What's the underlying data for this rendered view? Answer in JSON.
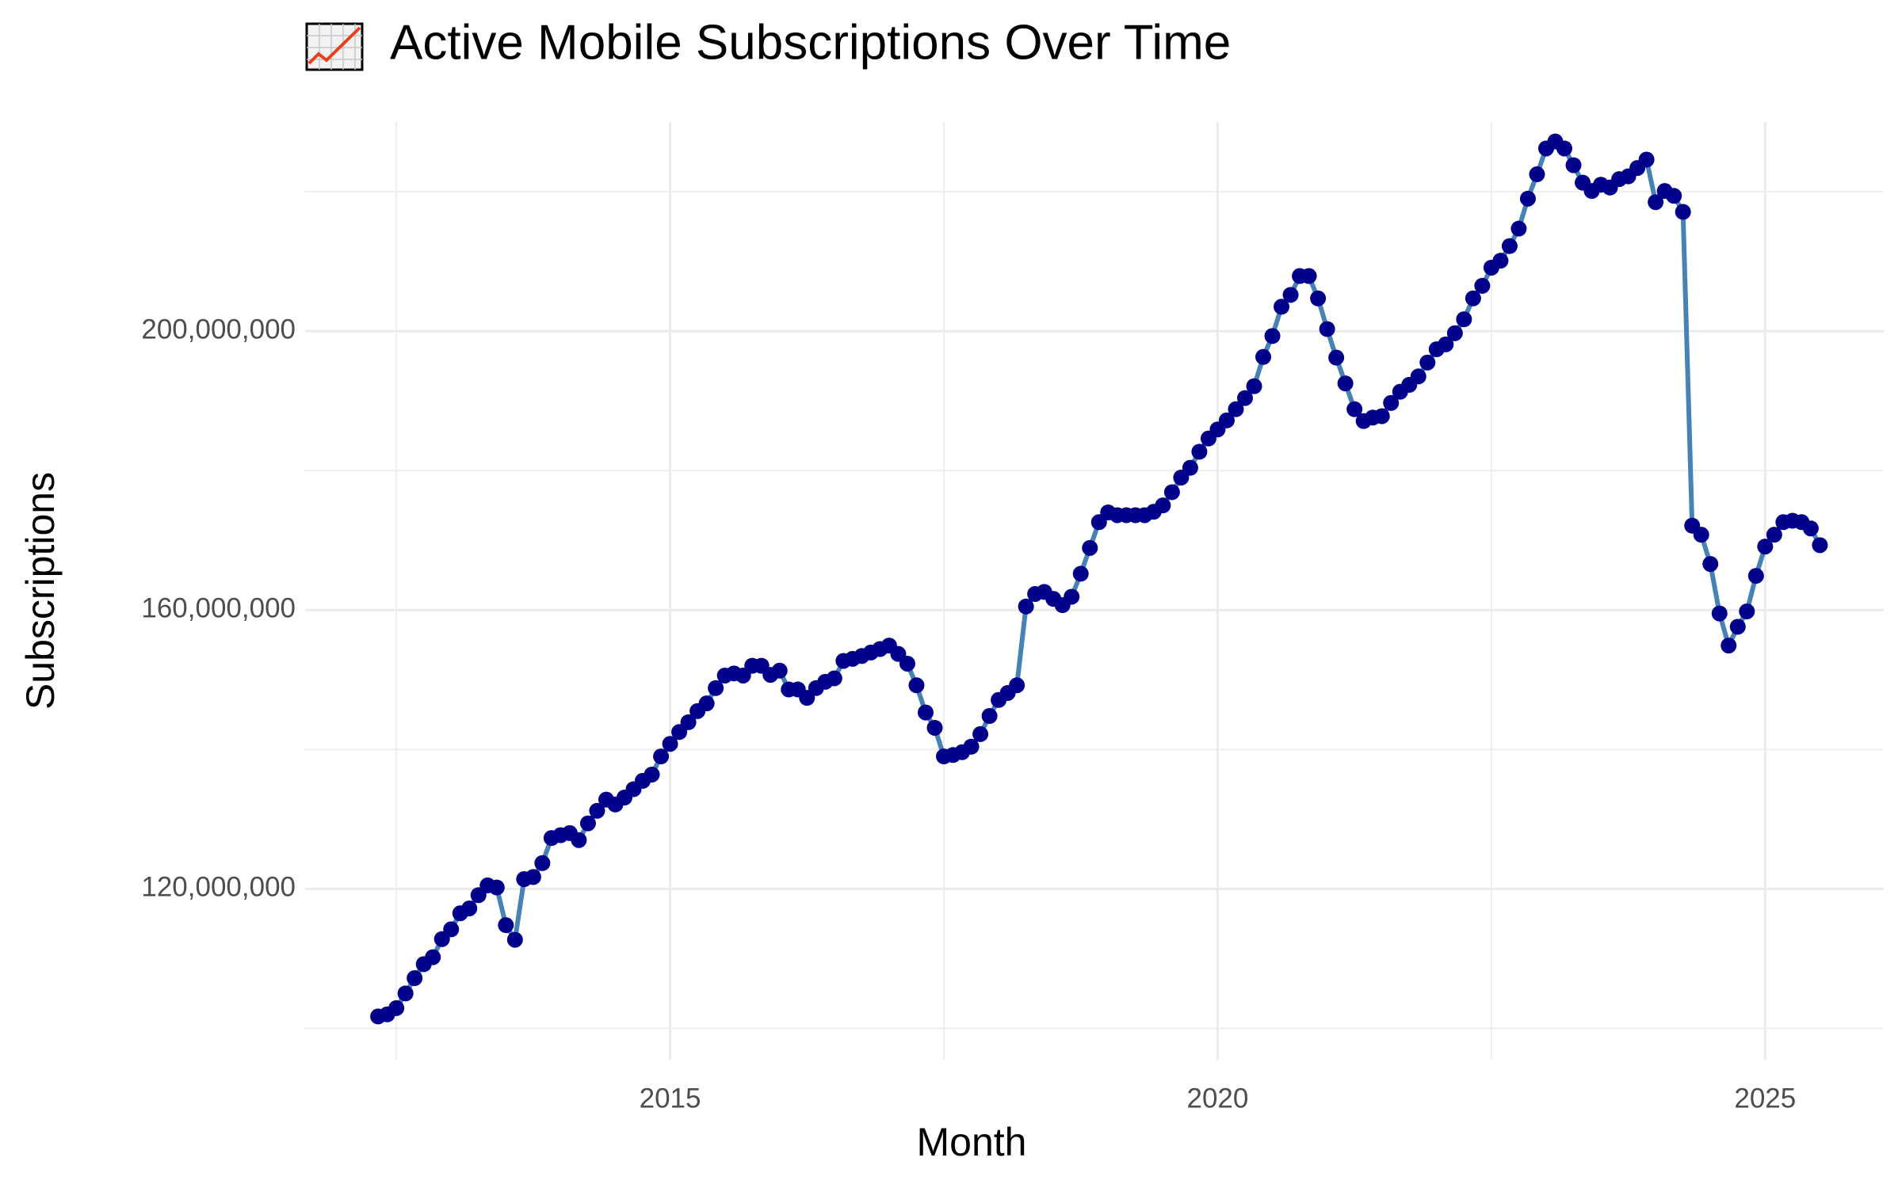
{
  "chart_data": {
    "type": "line",
    "title": "Active Mobile Subscriptions Over Time",
    "x_label": "Month",
    "y_label": "Subscriptions",
    "line_color": "#4682b4",
    "point_color": "#00008b",
    "grid": true,
    "xlim": [
      "2011-09",
      "2026-02"
    ],
    "xticks": [
      "2015",
      "2020",
      "2025"
    ],
    "x_minor_ticks": [
      "2012-07",
      "2017-07",
      "2022-07"
    ],
    "ylim": [
      95500000,
      230000000
    ],
    "yticks": [
      {
        "value": 120000000,
        "label": "120,000,000"
      },
      {
        "value": 160000000,
        "label": "160,000,000"
      },
      {
        "value": 200000000,
        "label": "200,000,000"
      }
    ],
    "y_minor_ticks": [
      100000000,
      140000000,
      180000000,
      220000000
    ],
    "x": [
      "2012-05",
      "2012-06",
      "2012-07",
      "2012-08",
      "2012-09",
      "2012-10",
      "2012-11",
      "2012-12",
      "2013-01",
      "2013-02",
      "2013-03",
      "2013-04",
      "2013-05",
      "2013-06",
      "2013-07",
      "2013-08",
      "2013-09",
      "2013-10",
      "2013-11",
      "2013-12",
      "2014-01",
      "2014-02",
      "2014-03",
      "2014-04",
      "2014-05",
      "2014-06",
      "2014-07",
      "2014-08",
      "2014-09",
      "2014-10",
      "2014-11",
      "2014-12",
      "2015-01",
      "2015-02",
      "2015-03",
      "2015-04",
      "2015-05",
      "2015-06",
      "2015-07",
      "2015-08",
      "2015-09",
      "2015-10",
      "2015-11",
      "2015-12",
      "2016-01",
      "2016-02",
      "2016-03",
      "2016-04",
      "2016-05",
      "2016-06",
      "2016-07",
      "2016-08",
      "2016-09",
      "2016-10",
      "2016-11",
      "2016-12",
      "2017-01",
      "2017-02",
      "2017-03",
      "2017-04",
      "2017-05",
      "2017-06",
      "2017-07",
      "2017-08",
      "2017-09",
      "2017-10",
      "2017-11",
      "2017-12",
      "2018-01",
      "2018-02",
      "2018-03",
      "2018-04",
      "2018-05",
      "2018-06",
      "2018-07",
      "2018-08",
      "2018-09",
      "2018-10",
      "2018-11",
      "2018-12",
      "2019-01",
      "2019-02",
      "2019-03",
      "2019-04",
      "2019-05",
      "2019-06",
      "2019-07",
      "2019-08",
      "2019-09",
      "2019-10",
      "2019-11",
      "2019-12",
      "2020-01",
      "2020-02",
      "2020-03",
      "2020-04",
      "2020-05",
      "2020-06",
      "2020-07",
      "2020-08",
      "2020-09",
      "2020-10",
      "2020-11",
      "2020-12",
      "2021-01",
      "2021-02",
      "2021-03",
      "2021-04",
      "2021-05",
      "2021-06",
      "2021-07",
      "2021-08",
      "2021-09",
      "2021-10",
      "2021-11",
      "2021-12",
      "2022-01",
      "2022-02",
      "2022-03",
      "2022-04",
      "2022-05",
      "2022-06",
      "2022-07",
      "2022-08",
      "2022-09",
      "2022-10",
      "2022-11",
      "2022-12",
      "2023-01",
      "2023-02",
      "2023-03",
      "2023-04",
      "2023-05",
      "2023-06",
      "2023-07",
      "2023-08",
      "2023-09",
      "2023-10",
      "2023-11",
      "2023-12",
      "2024-01",
      "2024-02",
      "2024-03",
      "2024-04",
      "2024-05",
      "2024-06",
      "2024-07",
      "2024-08",
      "2024-09",
      "2024-10",
      "2024-11",
      "2024-12",
      "2025-01",
      "2025-02",
      "2025-03",
      "2025-04",
      "2025-05",
      "2025-06",
      "2025-07"
    ],
    "values": [
      101700000,
      102000000,
      102900000,
      105000000,
      107200000,
      109200000,
      110200000,
      112800000,
      114200000,
      116500000,
      117200000,
      119100000,
      120500000,
      120200000,
      114800000,
      112700000,
      121400000,
      121700000,
      123700000,
      127300000,
      127700000,
      128000000,
      127000000,
      129400000,
      131200000,
      132800000,
      132100000,
      133100000,
      134300000,
      135500000,
      136400000,
      139000000,
      140800000,
      142500000,
      143900000,
      145500000,
      146600000,
      148800000,
      150600000,
      150900000,
      150600000,
      152000000,
      152000000,
      150700000,
      151300000,
      148600000,
      148600000,
      147400000,
      148800000,
      149700000,
      150200000,
      152700000,
      153000000,
      153400000,
      153900000,
      154400000,
      154900000,
      153700000,
      152300000,
      149200000,
      145300000,
      143100000,
      139000000,
      139200000,
      139600000,
      140400000,
      142200000,
      144800000,
      147100000,
      148100000,
      149200000,
      160500000,
      162300000,
      162600000,
      161600000,
      160700000,
      161900000,
      165200000,
      168900000,
      172600000,
      174000000,
      173600000,
      173600000,
      173600000,
      173600000,
      174100000,
      175000000,
      176900000,
      179000000,
      180400000,
      182700000,
      184600000,
      185900000,
      187200000,
      188800000,
      190400000,
      192100000,
      196300000,
      199300000,
      203500000,
      205200000,
      207900000,
      207900000,
      204700000,
      200300000,
      196200000,
      192500000,
      188800000,
      187100000,
      187600000,
      187800000,
      189700000,
      191300000,
      192300000,
      193500000,
      195500000,
      197400000,
      198100000,
      199700000,
      201700000,
      204700000,
      206500000,
      209100000,
      210100000,
      212200000,
      214700000,
      219000000,
      222500000,
      226200000,
      227200000,
      226200000,
      223800000,
      221300000,
      220100000,
      221000000,
      220600000,
      221800000,
      222200000,
      223400000,
      224600000,
      218500000,
      220100000,
      219400000,
      217100000,
      172100000,
      170800000,
      166600000,
      159500000,
      154900000,
      157600000,
      159800000,
      164900000,
      169100000,
      170800000,
      172600000,
      172800000,
      172600000,
      171700000,
      169300000
    ]
  }
}
